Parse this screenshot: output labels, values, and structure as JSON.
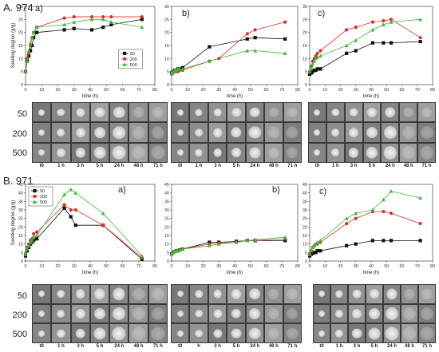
{
  "panel_A": {
    "label": "A. 974"
  },
  "panel_B": {
    "label": "B. 971"
  },
  "rows": [
    "50",
    "200",
    "500"
  ],
  "times": [
    "t0",
    "1 h",
    "3 h",
    "5 h",
    "24 h",
    "48 h",
    "71 h"
  ],
  "times_variant": [
    "t0",
    "h",
    "3 h",
    "5 h",
    "24 h",
    "48 h",
    "71 h"
  ],
  "chart_data": [
    {
      "id": "A-a",
      "type": "line",
      "panel_letter": "a)",
      "xlabel": "time (h)",
      "ylabel": "Swelling degree (g/g)",
      "xlim": [
        0,
        80
      ],
      "ylim": [
        0,
        30
      ],
      "xticks": [
        0,
        10,
        20,
        30,
        40,
        50,
        60,
        70,
        80
      ],
      "yticks": [
        0,
        5,
        10,
        15,
        20,
        25,
        30
      ],
      "legend": {
        "position": "right",
        "entries": [
          "50",
          "200",
          "500"
        ]
      },
      "series": [
        {
          "name": "50",
          "color": "#111111",
          "marker": "square",
          "x": [
            0,
            1,
            2,
            3,
            4,
            5,
            7,
            24,
            30,
            41,
            48,
            53,
            72
          ],
          "y": [
            5,
            9,
            11,
            13,
            15,
            18,
            20,
            21,
            21.5,
            21,
            22,
            23,
            25
          ]
        },
        {
          "name": "200",
          "color": "#d9302a",
          "marker": "circle",
          "x": [
            0,
            1,
            2,
            3,
            4,
            5,
            7,
            24,
            30,
            41,
            48,
            53,
            72
          ],
          "y": [
            5,
            10,
            12,
            15,
            18,
            20,
            22,
            25.5,
            26,
            26,
            26,
            26,
            26
          ]
        },
        {
          "name": "500",
          "color": "#3cb83c",
          "marker": "triangle",
          "x": [
            0,
            1,
            2,
            3,
            4,
            5,
            7,
            24,
            30,
            41,
            48,
            53,
            72
          ],
          "y": [
            5,
            9,
            13,
            16,
            18,
            20,
            22,
            23,
            24,
            25,
            25,
            24,
            22
          ]
        }
      ]
    },
    {
      "id": "A-b",
      "type": "line",
      "panel_letter": "b)",
      "xlabel": "time (h)",
      "ylabel": "",
      "xlim": [
        0,
        80
      ],
      "ylim": [
        0,
        30
      ],
      "xticks": [
        0,
        10,
        20,
        30,
        40,
        50,
        60,
        70,
        80
      ],
      "yticks": [
        0,
        5,
        10,
        15,
        20,
        25,
        30
      ],
      "series": [
        {
          "name": "50",
          "color": "#111111",
          "marker": "square",
          "x": [
            0,
            1,
            2,
            3,
            4,
            5,
            7,
            24,
            48,
            53,
            72
          ],
          "y": [
            4.5,
            5,
            5.5,
            5.5,
            6,
            6,
            6.5,
            14.5,
            17.5,
            18,
            17.5
          ]
        },
        {
          "name": "200",
          "color": "#d9302a",
          "marker": "circle",
          "x": [
            0,
            1,
            2,
            3,
            4,
            5,
            7,
            24,
            30,
            48,
            53,
            72
          ],
          "y": [
            4,
            4.5,
            5,
            5,
            5,
            5.5,
            5.5,
            9,
            10,
            19.5,
            21,
            24
          ]
        },
        {
          "name": "500",
          "color": "#3cb83c",
          "marker": "triangle",
          "x": [
            0,
            1,
            2,
            3,
            4,
            5,
            7,
            24,
            48,
            53,
            72
          ],
          "y": [
            4.5,
            5,
            5.5,
            5.5,
            6,
            6,
            6,
            9,
            13,
            13,
            12
          ]
        }
      ]
    },
    {
      "id": "A-c",
      "type": "line",
      "panel_letter": "c)",
      "xlabel": "time (h)",
      "ylabel": "",
      "xlim": [
        0,
        80
      ],
      "ylim": [
        0,
        30
      ],
      "xticks": [
        0,
        10,
        20,
        30,
        40,
        50,
        60,
        70,
        80
      ],
      "yticks": [
        0,
        5,
        10,
        15,
        20,
        25,
        30
      ],
      "series": [
        {
          "name": "50",
          "color": "#111111",
          "marker": "square",
          "x": [
            0,
            1,
            2,
            3,
            4,
            5,
            7,
            24,
            30,
            41,
            48,
            53,
            72
          ],
          "y": [
            4,
            4.5,
            5,
            5.5,
            5.5,
            6,
            6,
            12,
            13,
            16,
            16,
            16,
            16.5
          ]
        },
        {
          "name": "200",
          "color": "#d9302a",
          "marker": "circle",
          "x": [
            0,
            1,
            2,
            3,
            4,
            5,
            7,
            24,
            30,
            41,
            48,
            53,
            72
          ],
          "y": [
            5,
            7,
            9,
            10,
            11,
            12,
            13,
            21,
            22,
            24,
            24.5,
            25,
            18
          ]
        },
        {
          "name": "500",
          "color": "#3cb83c",
          "marker": "triangle",
          "x": [
            0,
            1,
            2,
            3,
            4,
            5,
            7,
            24,
            30,
            41,
            48,
            53,
            72
          ],
          "y": [
            5,
            6.5,
            8,
            9,
            10,
            10.5,
            11,
            15,
            17,
            21,
            23,
            24,
            25
          ]
        }
      ]
    },
    {
      "id": "B-a",
      "type": "line",
      "panel_letter": "a)",
      "xlabel": "time (h)",
      "ylabel": "Swelling degree (g/g)",
      "xlim": [
        0,
        80
      ],
      "ylim": [
        0,
        45
      ],
      "xticks": [
        0,
        10,
        20,
        30,
        40,
        50,
        60,
        70,
        80
      ],
      "yticks": [
        0,
        5,
        10,
        15,
        20,
        25,
        30,
        35,
        40,
        45
      ],
      "legend": {
        "position": "top-left",
        "entries": [
          "50",
          "200",
          "500"
        ]
      },
      "series": [
        {
          "name": "50",
          "color": "#111111",
          "marker": "square",
          "x": [
            0,
            1,
            2,
            3,
            4,
            5,
            7,
            24,
            28,
            31,
            48,
            72
          ],
          "y": [
            3,
            6,
            8,
            10,
            11,
            12,
            13,
            31,
            26,
            21,
            21,
            1
          ]
        },
        {
          "name": "200",
          "color": "#d9302a",
          "marker": "circle",
          "x": [
            0,
            1,
            2,
            3,
            4,
            5,
            7,
            24,
            28,
            31,
            48,
            72
          ],
          "y": [
            4,
            8,
            10,
            12,
            13,
            16,
            17,
            33,
            30,
            30,
            21,
            2
          ]
        },
        {
          "name": "500",
          "color": "#3cb83c",
          "marker": "triangle",
          "x": [
            0,
            1,
            2,
            3,
            4,
            5,
            7,
            24,
            28,
            31,
            48,
            72
          ],
          "y": [
            4,
            7,
            9,
            11,
            12,
            14,
            15,
            39,
            42,
            40,
            28,
            3
          ]
        }
      ]
    },
    {
      "id": "B-b",
      "type": "line",
      "panel_letter": "b)",
      "xlabel": "time (h)",
      "ylabel": "",
      "xlim": [
        0,
        80
      ],
      "ylim": [
        0,
        45
      ],
      "xticks": [
        0,
        10,
        20,
        30,
        40,
        50,
        60,
        70,
        80
      ],
      "yticks": [
        0,
        5,
        10,
        15,
        20,
        25,
        30,
        35,
        40,
        45
      ],
      "series": [
        {
          "name": "50",
          "color": "#111111",
          "marker": "square",
          "x": [
            0,
            1,
            2,
            3,
            4,
            5,
            7,
            24,
            30,
            41,
            48,
            53,
            72
          ],
          "y": [
            4,
            5,
            5.5,
            6,
            6,
            6.5,
            7,
            11,
            11,
            11.5,
            12,
            12,
            12
          ]
        },
        {
          "name": "200",
          "color": "#d9302a",
          "marker": "circle",
          "x": [
            0,
            1,
            2,
            3,
            4,
            5,
            7,
            24,
            30,
            41,
            48,
            53,
            72
          ],
          "y": [
            4,
            5,
            5.5,
            6,
            6,
            6.5,
            7,
            10,
            10.5,
            11,
            12,
            12,
            13
          ]
        },
        {
          "name": "500",
          "color": "#3cb83c",
          "marker": "triangle",
          "x": [
            0,
            1,
            2,
            3,
            4,
            5,
            7,
            24,
            30,
            41,
            48,
            53,
            72
          ],
          "y": [
            4,
            5,
            5.5,
            6,
            6,
            6.5,
            7,
            9,
            10,
            11,
            12,
            12.5,
            14
          ]
        }
      ]
    },
    {
      "id": "B-c",
      "type": "line",
      "panel_letter": "c)",
      "xlabel": "time (h)",
      "ylabel": "",
      "xlim": [
        0,
        80
      ],
      "ylim": [
        0,
        45
      ],
      "xticks": [
        0,
        10,
        20,
        30,
        40,
        50,
        60,
        70,
        80
      ],
      "yticks": [
        0,
        5,
        10,
        15,
        20,
        25,
        30,
        35,
        40,
        45
      ],
      "series": [
        {
          "name": "50",
          "color": "#111111",
          "marker": "square",
          "x": [
            0,
            1,
            2,
            3,
            4,
            5,
            7,
            24,
            30,
            41,
            48,
            53,
            72
          ],
          "y": [
            3,
            4,
            4.5,
            5,
            5,
            6,
            6,
            9,
            10,
            12,
            12,
            12,
            12
          ]
        },
        {
          "name": "200",
          "color": "#d9302a",
          "marker": "circle",
          "x": [
            0,
            1,
            2,
            3,
            4,
            5,
            7,
            24,
            30,
            41,
            48,
            53,
            72
          ],
          "y": [
            4,
            6,
            8,
            9,
            10,
            10,
            11,
            22,
            25,
            29,
            29,
            28,
            22
          ]
        },
        {
          "name": "500",
          "color": "#3cb83c",
          "marker": "triangle",
          "x": [
            0,
            1,
            2,
            3,
            4,
            5,
            7,
            24,
            30,
            41,
            48,
            53,
            72
          ],
          "y": [
            4,
            6,
            8,
            9,
            10,
            11,
            12,
            25,
            28,
            30,
            36,
            41,
            37
          ]
        }
      ]
    }
  ]
}
